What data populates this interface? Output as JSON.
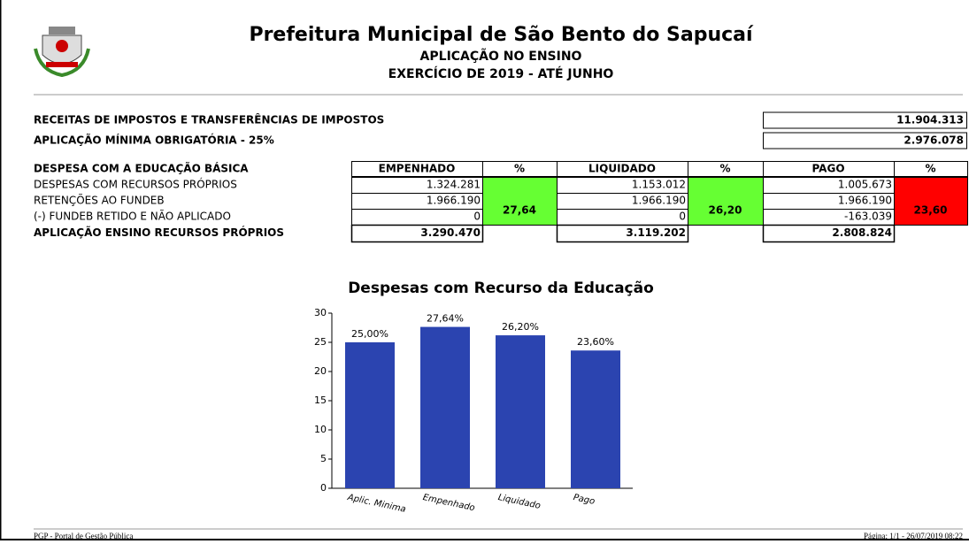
{
  "header": {
    "title": "Prefeitura Municipal de São Bento do Sapucaí",
    "subtitle": "APLICAÇÃO NO ENSINO",
    "period": "EXERCÍCIO DE 2019 - ATÉ JUNHO"
  },
  "summary": [
    {
      "label": "RECEITAS DE IMPOSTOS E TRANSFERÊNCIAS DE IMPOSTOS",
      "value": "11.904.313"
    },
    {
      "label": "APLICAÇÃO MÍNIMA OBRIGATÓRIA - 25%",
      "value": "2.976.078"
    }
  ],
  "table": {
    "title": "DESPESA COM A EDUCAÇÃO BÁSICA",
    "columns": [
      "EMPENHADO",
      "%",
      "LIQUIDADO",
      "%",
      "PAGO",
      "%"
    ],
    "rows": [
      [
        "DESPESAS COM RECURSOS PRÓPRIOS",
        "1.324.281",
        "1.153.012",
        "1.005.673"
      ],
      [
        "RETENÇÕES AO FUNDEB",
        "1.966.190",
        "1.966.190",
        "1.966.190"
      ],
      [
        "(-) FUNDEB RETIDO E NÃO APLICADO",
        "0",
        "0",
        "-163.039"
      ]
    ],
    "total": [
      "APLICAÇÃO ENSINO RECURSOS PRÓPRIOS",
      "3.290.470",
      "3.119.202",
      "2.808.824"
    ],
    "percentages": [
      {
        "value": "27,64",
        "color": "#66ff33"
      },
      {
        "value": "26,20",
        "color": "#66ff33"
      },
      {
        "value": "23,60",
        "color": "#ff0000"
      }
    ]
  },
  "chart_data": {
    "type": "bar",
    "title": "Despesas com Recurso da Educação",
    "categories": [
      "Aplic. Minima",
      "Empenhado",
      "Liquidado",
      "Pago"
    ],
    "values": [
      25,
      27.64,
      26.2,
      23.6
    ],
    "value_labels": [
      "25,00%",
      "27,64%",
      "26,20%",
      "23,60%"
    ],
    "color": "#2b44b0",
    "ylim": [
      0,
      30
    ],
    "yticks": [
      0,
      5,
      10,
      15,
      20,
      25,
      30
    ]
  },
  "footer": {
    "left": "PGP - Portal de Gestão Pública",
    "right": "Página: 1/1 - 26/07/2019 08:22"
  }
}
